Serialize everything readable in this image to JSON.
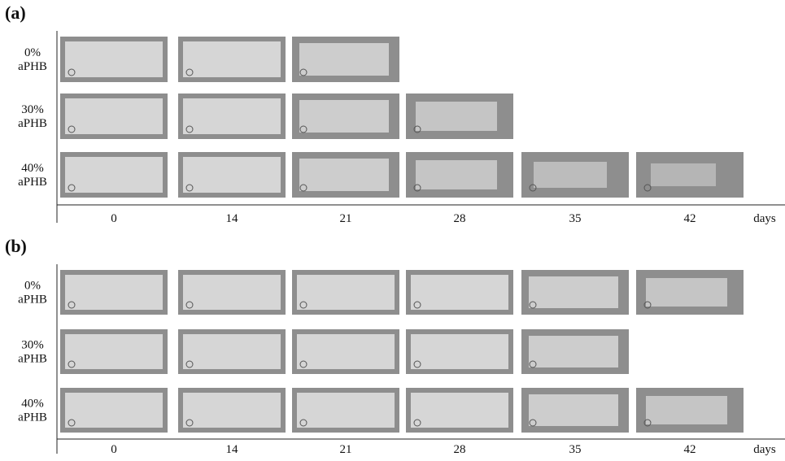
{
  "panels": [
    {
      "label": "(a)",
      "columns": [
        "0",
        "14",
        "21",
        "28",
        "35",
        "42"
      ],
      "unit": "days",
      "rows": [
        {
          "label": [
            "0%",
            "aPHB"
          ],
          "samples": 3
        },
        {
          "label": [
            "30%",
            "aPHB"
          ],
          "samples": 4
        },
        {
          "label": [
            "40%",
            "aPHB"
          ],
          "samples": 6
        }
      ]
    },
    {
      "label": "(b)",
      "columns": [
        "0",
        "14",
        "21",
        "28",
        "35",
        "42"
      ],
      "unit": "days",
      "rows": [
        {
          "label": [
            "0%",
            "aPHB"
          ],
          "samples": 6
        },
        {
          "label": [
            "30%",
            "aPHB"
          ],
          "samples": 5
        },
        {
          "label": [
            "40%",
            "aPHB"
          ],
          "samples": 6
        }
      ]
    }
  ]
}
